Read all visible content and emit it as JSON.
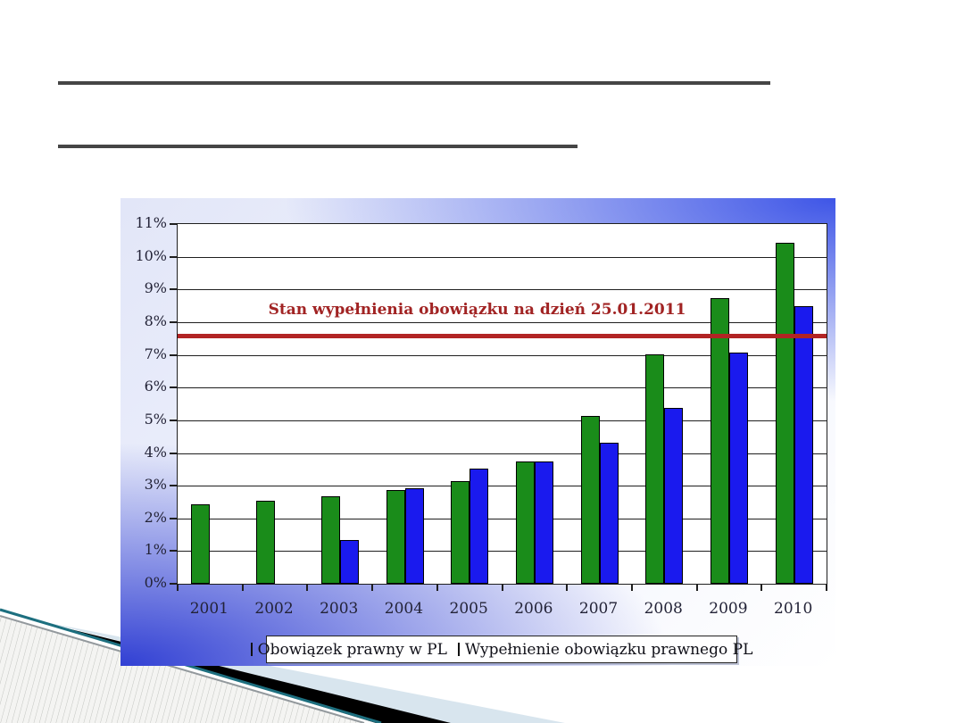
{
  "slide": {
    "description": "presentation slide with empty underlined title lines and an embedded bar chart",
    "title_text": "",
    "subtitle_text": ""
  },
  "colors": {
    "underline": "#454545",
    "panel_blue_top_right": "#3850e6",
    "panel_blue_bottom_left": "#2b3ad2",
    "panel_light": "#eef1fc",
    "plot_background": "#ffffff",
    "grid_line": "#1f1f1f",
    "axis_text": "#232337",
    "series_green": "#1a8c1a",
    "series_blue": "#1a1aee",
    "reference_line": "#b22424",
    "reference_label": "#a12323",
    "legend_border": "#222222",
    "decoration_teal": "#1d6f7f",
    "decoration_black": "#000000",
    "decoration_pale_blue": "#d8e5ee",
    "decoration_hatch_line": "#c3c5c1",
    "decoration_hatch_bg": "#f4f4f2"
  },
  "chart_data": {
    "type": "bar",
    "title": "",
    "xlabel": "",
    "ylabel": "",
    "categories": [
      "2001",
      "2002",
      "2003",
      "2004",
      "2005",
      "2006",
      "2007",
      "2008",
      "2009",
      "2010"
    ],
    "series": [
      {
        "name": "Obowiązek prawny w PL",
        "color_key": "series_green",
        "values": [
          2.4,
          2.5,
          2.65,
          2.85,
          3.1,
          3.7,
          5.1,
          7.0,
          8.7,
          10.4
        ]
      },
      {
        "name": "Wypełnienie obowiązku prawnego PL",
        "color_key": "series_blue",
        "values": [
          null,
          null,
          1.3,
          2.9,
          3.5,
          3.7,
          4.3,
          5.35,
          7.05,
          8.45
        ]
      }
    ],
    "ylim": [
      0,
      11
    ],
    "ytick_step": 1,
    "ytick_suffix": "%",
    "grid": true,
    "legend_position": "bottom",
    "reference_line": {
      "value": 7.6,
      "label": "Stan wypełnienia obowiązku na dzień 25.01.2011"
    }
  }
}
